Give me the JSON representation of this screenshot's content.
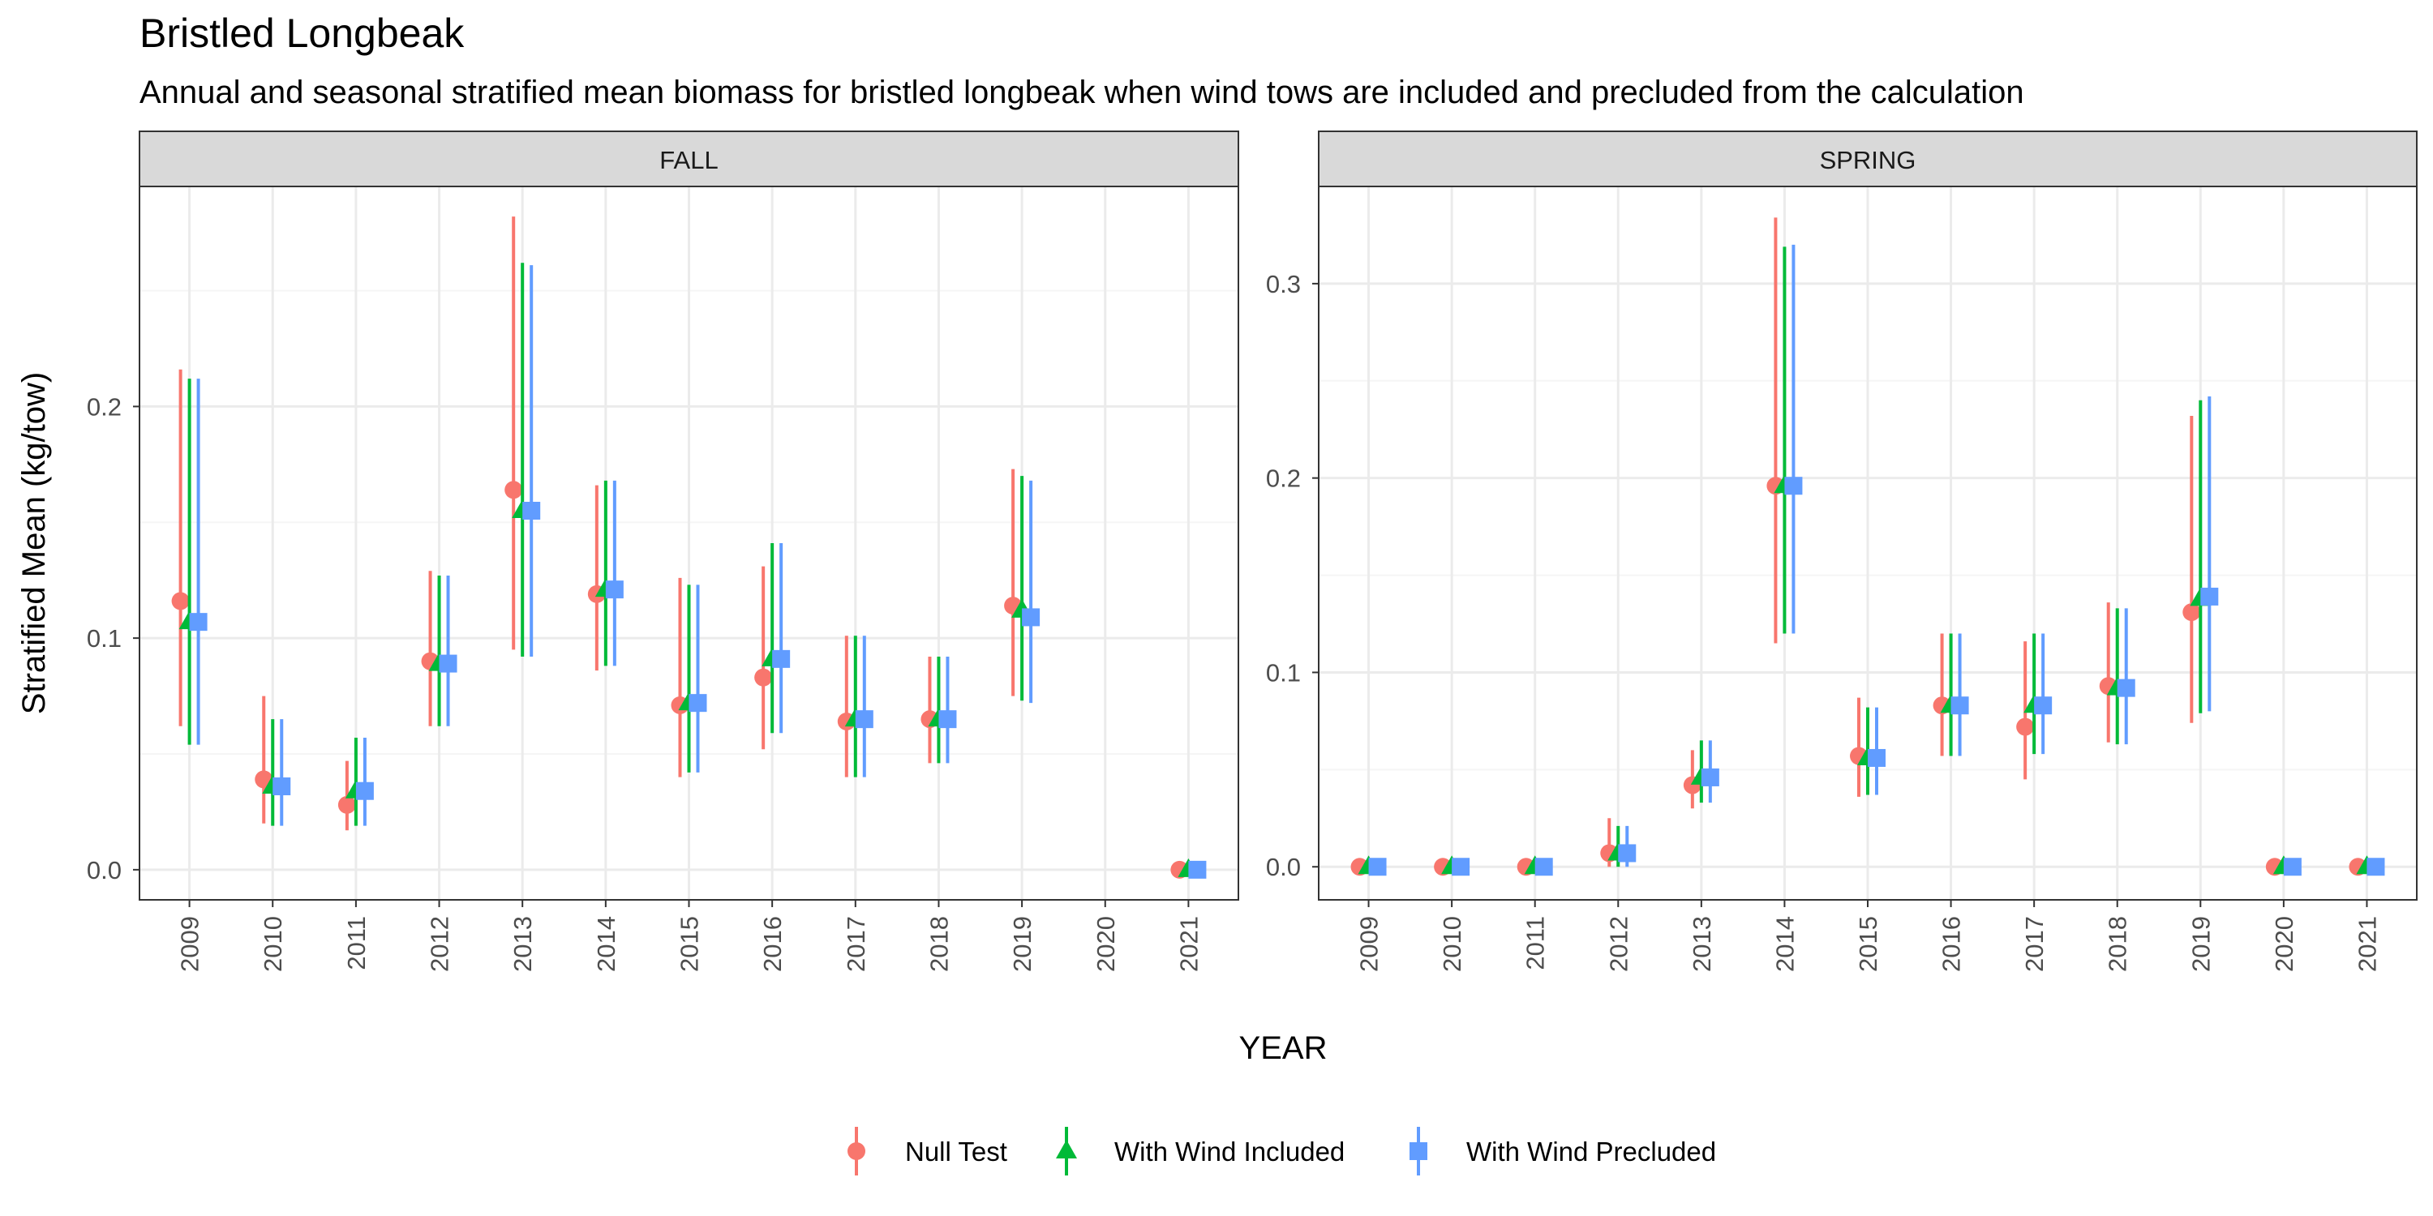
{
  "title": "Bristled Longbeak",
  "subtitle": "Annual and seasonal stratified mean biomass for bristled longbeak when wind tows are included and precluded from the calculation",
  "colors": {
    "null_test": "#F8766D",
    "wind_included": "#00BA38",
    "wind_precluded": "#619CFF",
    "strip_bg": "#D9D9D9",
    "grid_major": "#EBEBEB",
    "grid_minor": "#F5F5F5"
  },
  "chart_data": {
    "type": "scatter",
    "xlabel": "YEAR",
    "ylabel": "Stratified Mean (kg/tow)",
    "grid": true,
    "legend_position": "bottom",
    "legend": [
      "Null Test",
      "With Wind Included",
      "With Wind Precluded"
    ],
    "x": [
      "2009",
      "2010",
      "2011",
      "2012",
      "2013",
      "2014",
      "2015",
      "2016",
      "2017",
      "2018",
      "2019",
      "2020",
      "2021"
    ],
    "panels": [
      {
        "strip": "FALL",
        "ylim": [
          -0.013,
          0.295
        ],
        "yticks": [
          0.0,
          0.1,
          0.2
        ],
        "ytick_labels": [
          "0.0",
          "0.1",
          "0.2"
        ],
        "series": [
          {
            "name": "Null Test",
            "values": [
              0.116,
              0.039,
              0.028,
              0.09,
              0.164,
              0.119,
              0.071,
              0.083,
              0.064,
              0.065,
              0.114,
              null,
              0.0
            ],
            "lower": [
              0.062,
              0.02,
              0.017,
              0.062,
              0.095,
              0.086,
              0.04,
              0.052,
              0.04,
              0.046,
              0.075,
              null,
              0.0
            ],
            "upper": [
              0.216,
              0.075,
              0.047,
              0.129,
              0.282,
              0.166,
              0.126,
              0.131,
              0.101,
              0.092,
              0.173,
              null,
              0.0
            ]
          },
          {
            "name": "With Wind Included",
            "values": [
              0.107,
              0.036,
              0.034,
              0.089,
              0.155,
              0.121,
              0.072,
              0.091,
              0.065,
              0.065,
              0.112,
              null,
              0.0
            ],
            "lower": [
              0.054,
              0.019,
              0.019,
              0.062,
              0.092,
              0.088,
              0.042,
              0.059,
              0.04,
              0.046,
              0.073,
              null,
              0.0
            ],
            "upper": [
              0.212,
              0.065,
              0.057,
              0.127,
              0.262,
              0.168,
              0.123,
              0.141,
              0.101,
              0.092,
              0.17,
              null,
              0.0
            ]
          },
          {
            "name": "With Wind Precluded",
            "values": [
              0.107,
              0.036,
              0.034,
              0.089,
              0.155,
              0.121,
              0.072,
              0.091,
              0.065,
              0.065,
              0.109,
              null,
              0.0
            ],
            "lower": [
              0.054,
              0.019,
              0.019,
              0.062,
              0.092,
              0.088,
              0.042,
              0.059,
              0.04,
              0.046,
              0.072,
              null,
              0.0
            ],
            "upper": [
              0.212,
              0.065,
              0.057,
              0.127,
              0.261,
              0.168,
              0.123,
              0.141,
              0.101,
              0.092,
              0.168,
              null,
              0.0
            ]
          }
        ]
      },
      {
        "strip": "SPRING",
        "ylim": [
          -0.017,
          0.35
        ],
        "yticks": [
          0.0,
          0.1,
          0.2,
          0.3
        ],
        "ytick_labels": [
          "0.0",
          "0.1",
          "0.2",
          "0.3"
        ],
        "series": [
          {
            "name": "Null Test",
            "values": [
              0.0,
              0.0,
              0.0,
              0.007,
              0.042,
              0.196,
              0.057,
              0.083,
              0.072,
              0.093,
              0.131,
              0.0,
              0.0
            ],
            "lower": [
              0.0,
              0.0,
              0.0,
              0.0,
              0.03,
              0.115,
              0.036,
              0.057,
              0.045,
              0.064,
              0.074,
              0.0,
              0.0
            ],
            "upper": [
              0.0,
              0.0,
              0.0,
              0.025,
              0.06,
              0.334,
              0.087,
              0.12,
              0.116,
              0.136,
              0.232,
              0.0,
              0.0
            ]
          },
          {
            "name": "With Wind Included",
            "values": [
              0.0,
              0.0,
              0.0,
              0.007,
              0.046,
              0.196,
              0.056,
              0.083,
              0.083,
              0.092,
              0.138,
              0.0,
              0.0
            ],
            "lower": [
              0.0,
              0.0,
              0.0,
              0.0,
              0.033,
              0.12,
              0.037,
              0.057,
              0.058,
              0.063,
              0.079,
              0.0,
              0.0
            ],
            "upper": [
              0.0,
              0.0,
              0.0,
              0.021,
              0.065,
              0.319,
              0.082,
              0.12,
              0.12,
              0.133,
              0.24,
              0.0,
              0.0
            ]
          },
          {
            "name": "With Wind Precluded",
            "values": [
              0.0,
              0.0,
              0.0,
              0.007,
              0.046,
              0.196,
              0.056,
              0.083,
              0.083,
              0.092,
              0.139,
              0.0,
              0.0
            ],
            "lower": [
              0.0,
              0.0,
              0.0,
              0.0,
              0.033,
              0.12,
              0.037,
              0.057,
              0.058,
              0.063,
              0.08,
              0.0,
              0.0
            ],
            "upper": [
              0.0,
              0.0,
              0.0,
              0.021,
              0.065,
              0.32,
              0.082,
              0.12,
              0.12,
              0.133,
              0.242,
              0.0,
              0.0
            ]
          }
        ]
      }
    ]
  }
}
